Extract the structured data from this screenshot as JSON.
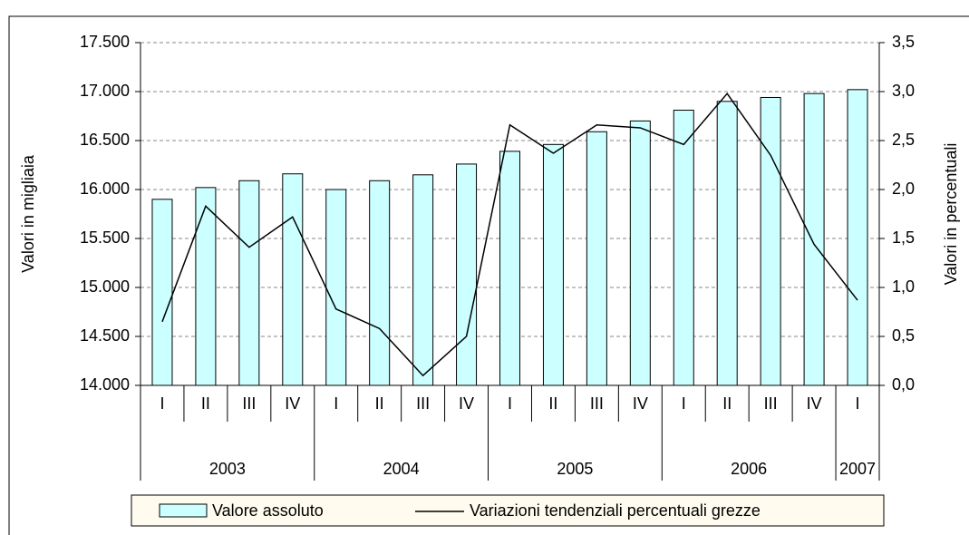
{
  "chart_data": {
    "type": "bar_line",
    "y_label": "Valori in migliaia",
    "y2_label": "Valori in percentuali",
    "categories": [
      "I",
      "II",
      "III",
      "IV",
      "I",
      "II",
      "III",
      "IV",
      "I",
      "II",
      "III",
      "IV",
      "I",
      "II",
      "III",
      "IV",
      "I"
    ],
    "years": [
      "2003",
      "2003",
      "2003",
      "2003",
      "2004",
      "2004",
      "2004",
      "2004",
      "2005",
      "2005",
      "2005",
      "2005",
      "2006",
      "2006",
      "2006",
      "2006",
      "2007"
    ],
    "series": [
      {
        "name": "Valore assoluto",
        "type": "bar",
        "color": "#ccffff",
        "values": [
          15900,
          16020,
          16090,
          16160,
          16000,
          16090,
          16150,
          16260,
          16390,
          16460,
          16590,
          16700,
          16810,
          16900,
          16940,
          16980,
          17020
        ]
      },
      {
        "name": "Variazioni tendenziali percentuali grezze",
        "type": "line",
        "color": "#000000",
        "axis": "y2",
        "values": [
          0.65,
          1.83,
          1.41,
          1.72,
          0.78,
          0.58,
          0.1,
          0.5,
          2.66,
          2.37,
          2.66,
          2.63,
          2.46,
          2.98,
          2.35,
          1.44,
          0.87
        ]
      }
    ],
    "ylim": [
      14000,
      17500
    ],
    "yticks": [
      {
        "value": 14000,
        "label": "14.000"
      },
      {
        "value": 14500,
        "label": "14.500"
      },
      {
        "value": 15000,
        "label": "15.000"
      },
      {
        "value": 15500,
        "label": "15.500"
      },
      {
        "value": 16000,
        "label": "16.000"
      },
      {
        "value": 16500,
        "label": "16.500"
      },
      {
        "value": 17000,
        "label": "17.000"
      },
      {
        "value": 17500,
        "label": "17.500"
      }
    ],
    "y2lim": [
      0,
      3.5
    ],
    "y2ticks": [
      {
        "value": 0,
        "label": "0,0"
      },
      {
        "value": 0.5,
        "label": "0,5"
      },
      {
        "value": 1,
        "label": "1,0"
      },
      {
        "value": 1.5,
        "label": "1,5"
      },
      {
        "value": 2,
        "label": "2,0"
      },
      {
        "value": 2.5,
        "label": "2,5"
      },
      {
        "value": 3,
        "label": "3,0"
      },
      {
        "value": 3.5,
        "label": "3,5"
      }
    ],
    "grid": true
  }
}
